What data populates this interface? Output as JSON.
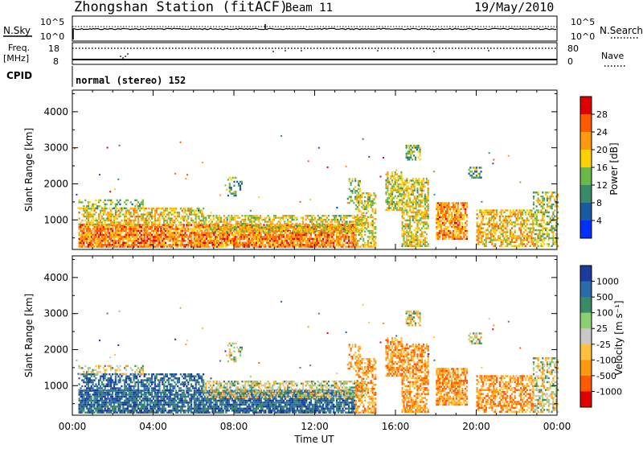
{
  "header": {
    "station": "Zhongshan Station (fitACF)",
    "beam": "Beam 11",
    "date": "19/May/2010"
  },
  "strip_labels": {
    "nsky": "N.Sky",
    "nsky_ticks": [
      "10^5",
      "10^0"
    ],
    "nsearch": "N.Search",
    "nsearch_ticks": [
      "10^5",
      "10^0"
    ],
    "freq_line1": "Freq.",
    "freq_line2": "[MHz]",
    "freq_ticks": [
      "18",
      "8"
    ],
    "nave": "Nave",
    "nave_ticks": [
      "80",
      "0"
    ],
    "cpid": "CPID",
    "mode": "normal (stereo) 152"
  },
  "chart_data": [
    {
      "type": "heatmap",
      "parameter": "power",
      "ylabel": "Slant Range [km]",
      "yticks": [
        1000,
        2000,
        3000,
        4000
      ],
      "ylim": [
        180,
        4600
      ],
      "colorbar_label": "Power [dB]",
      "colorbar_ticks": [
        "28",
        "24",
        "20",
        "16",
        "12",
        "8",
        "4"
      ],
      "colorbar_colors": [
        "#e00000",
        "#ff5a00",
        "#ff9a10",
        "#ffd000",
        "#6ab84a",
        "#3a8a6a",
        "#1a5aa0",
        "#0030ff"
      ],
      "colorbar_scale_top_to_bottom": [
        "red",
        "orange-red",
        "orange",
        "yellow",
        "green",
        "teal",
        "blue",
        "bright blue"
      ]
    },
    {
      "type": "heatmap",
      "parameter": "velocity",
      "ylabel": "Slant Range [km]",
      "yticks": [
        1000,
        2000,
        3000,
        4000
      ],
      "ylim": [
        180,
        4600
      ],
      "colorbar_label": "Velocity [m s⁻¹]",
      "colorbar_ticks": [
        "1000",
        "500",
        "100",
        "25",
        "-25",
        "-100",
        "-500",
        "-1000"
      ],
      "colorbar_colors": [
        "#1a3aa0",
        "#2a6aa8",
        "#3a8a6a",
        "#8ad070",
        "#c8c8c8",
        "#ffc040",
        "#ff9a10",
        "#ff5a00",
        "#e00000"
      ]
    }
  ],
  "xaxis": {
    "ticks": [
      "00:00",
      "04:00",
      "08:00",
      "12:00",
      "16:00",
      "20:00",
      "00:00"
    ],
    "label": "Time UT"
  }
}
